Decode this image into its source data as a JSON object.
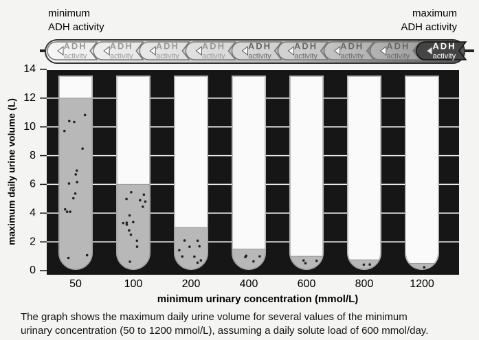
{
  "chart_data": {
    "type": "tube",
    "min_label": [
      "minimum",
      "ADH activity"
    ],
    "max_label": [
      "maximum",
      "ADH activity"
    ],
    "adh_scale": [
      {
        "label": "ADH",
        "sublabel": "activity"
      },
      {
        "label": "ADH",
        "sublabel": "activity"
      },
      {
        "label": "ADH",
        "sublabel": "activity"
      },
      {
        "label": "ADH",
        "sublabel": "activity"
      },
      {
        "label": "ADH",
        "sublabel": "activity"
      },
      {
        "label": "ADH",
        "sublabel": "activity"
      },
      {
        "label": "ADH",
        "sublabel": "activity"
      },
      {
        "label": "ADH",
        "sublabel": "activity"
      },
      {
        "label": "ADH",
        "sublabel": "activity"
      }
    ],
    "ylabel": "maximum daily urine volume (L)",
    "xlabel": "minimum urinary concentration (mmol/L)",
    "categories": [
      "50",
      "100",
      "200",
      "400",
      "600",
      "800",
      "1200"
    ],
    "values": [
      12,
      6,
      3,
      1.5,
      1,
      0.75,
      0.5
    ],
    "ylim": [
      0,
      14
    ],
    "yticks": [
      0,
      2,
      4,
      6,
      8,
      10,
      12,
      14
    ],
    "color": "#b8b8b8",
    "grid": true,
    "caption": [
      "The graph shows the maximum daily urine volume for several values of the minimum",
      "urinary concentration (50 to 1200 mmol/L), assuming a daily solute load of 600 mmol/day."
    ]
  }
}
